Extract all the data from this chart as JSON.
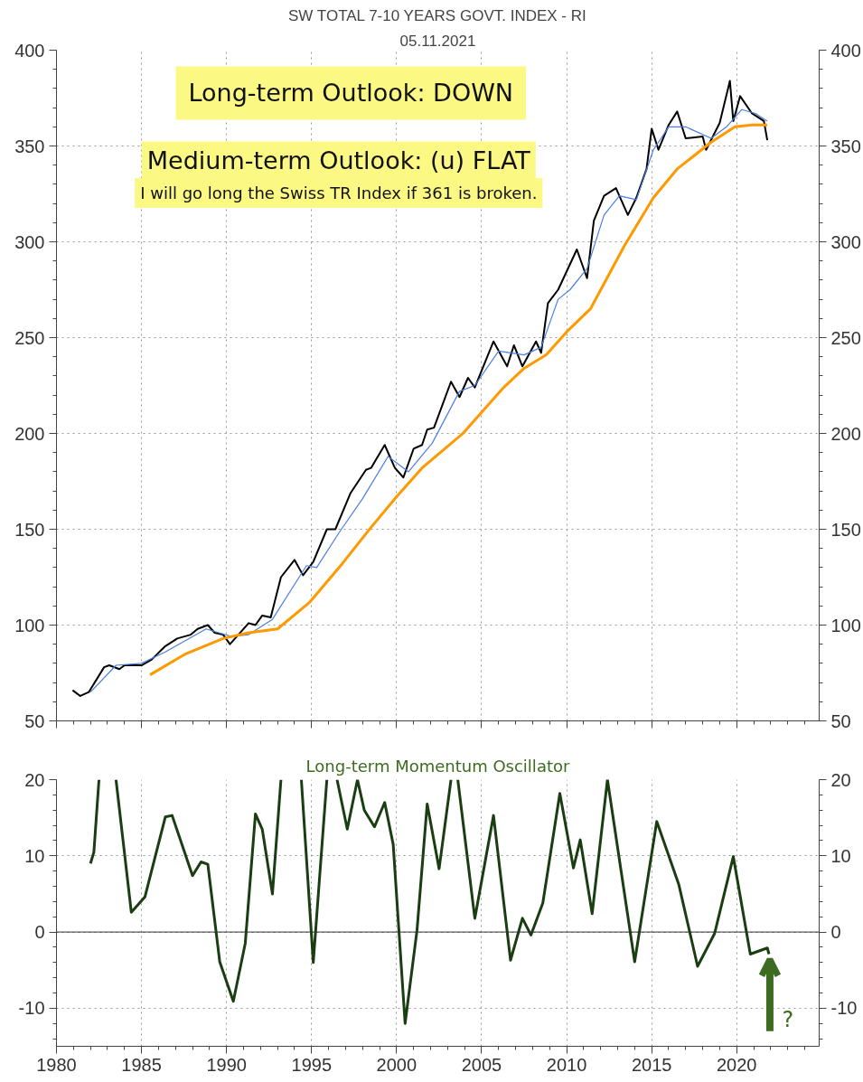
{
  "chart_data": [
    {
      "type": "line",
      "title": "SW TOTAL 7-10 YEARS GOVT. INDEX - RI",
      "subtitle": "05.11.2021",
      "annotations": [
        "Long-term Outlook: DOWN",
        "Medium-term Outlook: (u) FLAT",
        "I will go long the Swiss TR Index if 361 is broken."
      ],
      "series": [
        {
          "color": "#000000",
          "x": [
            1980.95,
            1981.4,
            1981.9,
            1982.8,
            1983.1,
            1983.7,
            1984,
            1985,
            1985.6,
            1986.4,
            1987.1,
            1987.9,
            1988.3,
            1988.9,
            1989.3,
            1989.8,
            1990.2,
            1990.7,
            1991.3,
            1991.7,
            1992.1,
            1992.6,
            1993.2,
            1994,
            1994.5,
            1995.1,
            1995.9,
            1996.4,
            1997.3,
            1998.2,
            1998.5,
            1999.3,
            1999.9,
            2000.4,
            2001,
            2001.5,
            2001.8,
            2002.2,
            2003.2,
            2003.7,
            2004.2,
            2004.6,
            2005.7,
            2006.5,
            2006.9,
            2007.4,
            2008.2,
            2008.5,
            2008.9,
            2009.5,
            2010.6,
            2011.2,
            2011.6,
            2012.2,
            2012.9,
            2013.6,
            2014.1,
            2014.7,
            2015,
            2015.4,
            2016,
            2016.5,
            2017,
            2018,
            2018.2,
            2019,
            2019.6,
            2019.8,
            2020.2,
            2020.9,
            2021.6,
            2021.8
          ],
          "values": [
            66,
            63,
            65,
            78,
            79,
            77,
            79,
            79,
            82,
            89,
            93,
            95,
            98,
            100,
            96,
            95,
            90,
            95,
            101,
            100,
            105,
            104,
            125,
            134,
            126,
            133,
            150,
            150,
            169,
            181,
            182,
            194,
            182,
            177,
            192,
            194,
            202,
            203,
            227,
            219,
            229,
            224,
            248,
            235,
            246,
            235,
            248,
            242,
            268,
            275,
            296,
            281,
            311,
            324,
            328,
            314,
            323,
            338,
            359,
            348,
            361,
            368,
            354,
            355,
            348,
            362,
            384,
            363,
            376,
            367,
            363,
            353
          ]
        },
        {
          "color": "#4a7fe0",
          "x": [
            1982,
            1983.5,
            1985,
            1986.4,
            1988.8,
            1990.3,
            1991.3,
            1992.7,
            1994.7,
            1995.3,
            1996.6,
            1998,
            1999.5,
            2000.7,
            2002.1,
            2003.7,
            2004.6,
            2006,
            2007.5,
            2008.5,
            2009.5,
            2010.2,
            2011.2,
            2012.2,
            2013.1,
            2014.1,
            2015.1,
            2016,
            2017,
            2018.5,
            2019.4,
            2020.3,
            2021.1,
            2021.8
          ],
          "values": [
            65,
            79,
            80,
            86,
            98,
            94,
            95,
            103,
            131,
            130,
            148,
            166,
            188,
            180,
            195,
            222,
            225,
            243,
            241,
            245,
            270,
            275,
            286,
            314,
            324,
            322,
            348,
            360,
            360,
            354,
            360,
            369,
            367,
            363
          ]
        },
        {
          "color": "#ff9900",
          "x": [
            1985.5,
            1987.6,
            1989.8,
            1991.3,
            1993,
            1994.9,
            1996.8,
            1998.5,
            2000,
            2001.5,
            2003.9,
            2006.3,
            2007.5,
            2008.8,
            2010,
            2011.4,
            2013.4,
            2015.1,
            2016.5,
            2018.5,
            2019.9,
            2020.9,
            2021.8
          ],
          "values": [
            74,
            85,
            93,
            96,
            98,
            112,
            132,
            151,
            167,
            182,
            200,
            224,
            234,
            241,
            253,
            265,
            298,
            323,
            338,
            352,
            360,
            361,
            361
          ]
        }
      ],
      "xlim": [
        1980,
        2024.85
      ],
      "xticks": [
        1980,
        1985,
        1990,
        1995,
        2000,
        2005,
        2010,
        2015,
        2020
      ],
      "ylim": [
        50,
        400
      ],
      "yticks": [
        50,
        100,
        150,
        200,
        250,
        300,
        350,
        400
      ],
      "y2lim": [
        50,
        400
      ],
      "y2ticks": [
        50,
        100,
        150,
        200,
        250,
        300,
        350,
        400
      ],
      "tick_labels": "y",
      "grid": true
    },
    {
      "type": "line",
      "title": "Long-term Momentum Oscillator",
      "annotations": [
        {
          "text": "?",
          "x": 2021.95,
          "y": -3.6
        }
      ],
      "series": [
        {
          "color": "#1a3d12",
          "x": [
            1982.0,
            1982.2,
            1982.5,
            1983.0,
            1983.5,
            1984.4,
            1985.2,
            1986.4,
            1986.8,
            1988.0,
            1988.5,
            1988.9,
            1989.6,
            1990.4,
            1991.1,
            1991.7,
            1992.1,
            1992.7,
            1993.2,
            1993.8,
            1994.4,
            1995.1,
            1995.9,
            1996.2,
            1996.5,
            1997.1,
            1997.7,
            1998.1,
            1998.7,
            1999.3,
            1999.8,
            2000.5,
            2001.2,
            2001.8,
            2002.5,
            2003.2,
            2003.4,
            2003.6,
            2004.6,
            2005.7,
            2006.7,
            2007.4,
            2007.9,
            2008.6,
            2009.6,
            2010.4,
            2010.8,
            2011.5,
            2012.4,
            2014.0,
            2015.3,
            2016.6,
            2017.7,
            2018.7,
            2019.8,
            2020.8,
            2021.8,
            2021.9
          ],
          "values": [
            9,
            10.5,
            20,
            null,
            20,
            2.6,
            4.6,
            15.1,
            15.3,
            7.4,
            9.2,
            8.9,
            -3.9,
            -9.1,
            -1.5,
            15.5,
            13.5,
            5,
            20,
            null,
            20,
            -4,
            20,
            null,
            20,
            13.5,
            20,
            16,
            13.8,
            17,
            11.5,
            -12,
            0.2,
            16.8,
            8.3,
            20,
            null,
            20,
            1.8,
            15.3,
            -3.7,
            1.8,
            -0.4,
            3.8,
            18.2,
            8.4,
            12.1,
            2.4,
            20,
            -3.9,
            14.5,
            6.2,
            -4.5,
            -0.2,
            9.9,
            -2.9,
            -2.1,
            -2.9
          ]
        }
      ],
      "xlim": [
        1980,
        2024.85
      ],
      "xticks": [
        1980,
        1985,
        1990,
        1995,
        2000,
        2005,
        2010,
        2015,
        2020
      ],
      "ylim": [
        -15,
        20
      ],
      "yticks": [
        -10,
        0,
        10,
        20
      ],
      "y2lim": [
        -15,
        20
      ],
      "y2ticks": [
        -10,
        0,
        10,
        20
      ],
      "ref_lines": [
        {
          "axis": "y",
          "value": 0,
          "color": "#333333"
        }
      ],
      "grid": true
    }
  ]
}
